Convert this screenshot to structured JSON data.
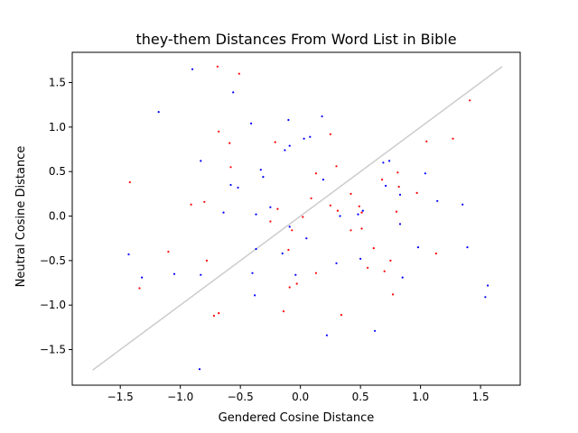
{
  "chart_data": {
    "type": "scatter",
    "title": "they-them Distances From Word List in Bible",
    "xlabel": "Gendered Cosine Distance",
    "ylabel": "Neutral Cosine Distance",
    "xlim": [
      -1.9,
      1.83
    ],
    "ylim": [
      -1.9,
      1.84
    ],
    "xticks": [
      -1.5,
      -1.0,
      -0.5,
      0.0,
      0.5,
      1.0,
      1.5
    ],
    "xtick_labels": [
      "−1.5",
      "−1.0",
      "−0.5",
      "0.0",
      "0.5",
      "1.0",
      "1.5"
    ],
    "yticks": [
      -1.5,
      -1.0,
      -0.5,
      0.0,
      0.5,
      1.0,
      1.5
    ],
    "ytick_labels": [
      "−1.5",
      "−1.0",
      "−0.5",
      "0.0",
      "0.5",
      "1.0",
      "1.5"
    ],
    "grid": false,
    "reference_line": {
      "x": [
        -1.73,
        1.68
      ],
      "y": [
        -1.73,
        1.68
      ],
      "color": "#cccccc"
    },
    "series": [
      {
        "color": "#0000ff",
        "points": [
          [
            -0.9,
            1.65
          ],
          [
            -1.18,
            1.17
          ],
          [
            -0.56,
            1.39
          ],
          [
            -0.41,
            1.04
          ],
          [
            -0.1,
            1.08
          ],
          [
            0.18,
            1.12
          ],
          [
            -0.83,
            0.62
          ],
          [
            -0.33,
            0.52
          ],
          [
            -0.31,
            0.44
          ],
          [
            -0.58,
            0.35
          ],
          [
            -0.52,
            0.32
          ],
          [
            -0.64,
            0.04
          ],
          [
            -0.37,
            0.02
          ],
          [
            -0.25,
            0.1
          ],
          [
            0.03,
            0.87
          ],
          [
            0.08,
            0.89
          ],
          [
            -0.13,
            0.74
          ],
          [
            -0.09,
            0.79
          ],
          [
            0.19,
            0.41
          ],
          [
            0.33,
            0.0
          ],
          [
            0.48,
            0.02
          ],
          [
            0.52,
            0.06
          ],
          [
            0.71,
            0.34
          ],
          [
            0.69,
            0.6
          ],
          [
            0.74,
            0.62
          ],
          [
            0.83,
            0.24
          ],
          [
            0.83,
            -0.09
          ],
          [
            1.04,
            0.48
          ],
          [
            1.14,
            0.17
          ],
          [
            1.35,
            0.13
          ],
          [
            -1.43,
            -0.43
          ],
          [
            -1.32,
            -0.69
          ],
          [
            -1.05,
            -0.65
          ],
          [
            -0.83,
            -0.66
          ],
          [
            -0.37,
            -0.37
          ],
          [
            -0.4,
            -0.64
          ],
          [
            -0.38,
            -0.89
          ],
          [
            -0.15,
            -0.42
          ],
          [
            -0.09,
            -0.12
          ],
          [
            0.05,
            -0.25
          ],
          [
            -0.04,
            -0.66
          ],
          [
            0.3,
            -0.53
          ],
          [
            0.5,
            -0.48
          ],
          [
            0.85,
            -0.69
          ],
          [
            0.98,
            -0.35
          ],
          [
            1.39,
            -0.35
          ],
          [
            1.56,
            -0.78
          ],
          [
            1.54,
            -0.91
          ],
          [
            0.22,
            -1.34
          ],
          [
            0.62,
            -1.29
          ],
          [
            -0.84,
            -1.72
          ]
        ]
      },
      {
        "color": "#ff0000",
        "points": [
          [
            -0.69,
            1.68
          ],
          [
            -0.51,
            1.6
          ],
          [
            1.41,
            1.3
          ],
          [
            -0.68,
            0.95
          ],
          [
            -0.59,
            0.82
          ],
          [
            -0.21,
            0.83
          ],
          [
            0.25,
            0.92
          ],
          [
            1.05,
            0.84
          ],
          [
            1.27,
            0.87
          ],
          [
            -1.42,
            0.38
          ],
          [
            -0.58,
            0.55
          ],
          [
            0.3,
            0.56
          ],
          [
            0.13,
            0.48
          ],
          [
            0.68,
            0.41
          ],
          [
            0.81,
            0.49
          ],
          [
            0.42,
            0.25
          ],
          [
            0.97,
            0.26
          ],
          [
            0.82,
            0.33
          ],
          [
            -0.91,
            0.13
          ],
          [
            -0.8,
            0.16
          ],
          [
            -0.19,
            0.08
          ],
          [
            0.09,
            0.2
          ],
          [
            0.25,
            0.12
          ],
          [
            0.31,
            0.06
          ],
          [
            0.49,
            0.11
          ],
          [
            0.8,
            0.05
          ],
          [
            0.51,
            0.04
          ],
          [
            0.02,
            -0.01
          ],
          [
            -0.25,
            -0.06
          ],
          [
            -0.07,
            -0.16
          ],
          [
            0.42,
            -0.16
          ],
          [
            0.51,
            -0.14
          ],
          [
            0.61,
            -0.36
          ],
          [
            -1.1,
            -0.4
          ],
          [
            -0.78,
            -0.5
          ],
          [
            -0.1,
            -0.38
          ],
          [
            0.56,
            -0.58
          ],
          [
            0.75,
            -0.5
          ],
          [
            1.13,
            -0.42
          ],
          [
            -1.34,
            -0.81
          ],
          [
            0.13,
            -0.64
          ],
          [
            0.7,
            -0.62
          ],
          [
            -0.09,
            -0.8
          ],
          [
            -0.03,
            -0.76
          ],
          [
            0.77,
            -0.88
          ],
          [
            -0.68,
            -1.09
          ],
          [
            -0.72,
            -1.12
          ],
          [
            -0.14,
            -1.07
          ],
          [
            0.34,
            -1.11
          ]
        ]
      }
    ]
  }
}
